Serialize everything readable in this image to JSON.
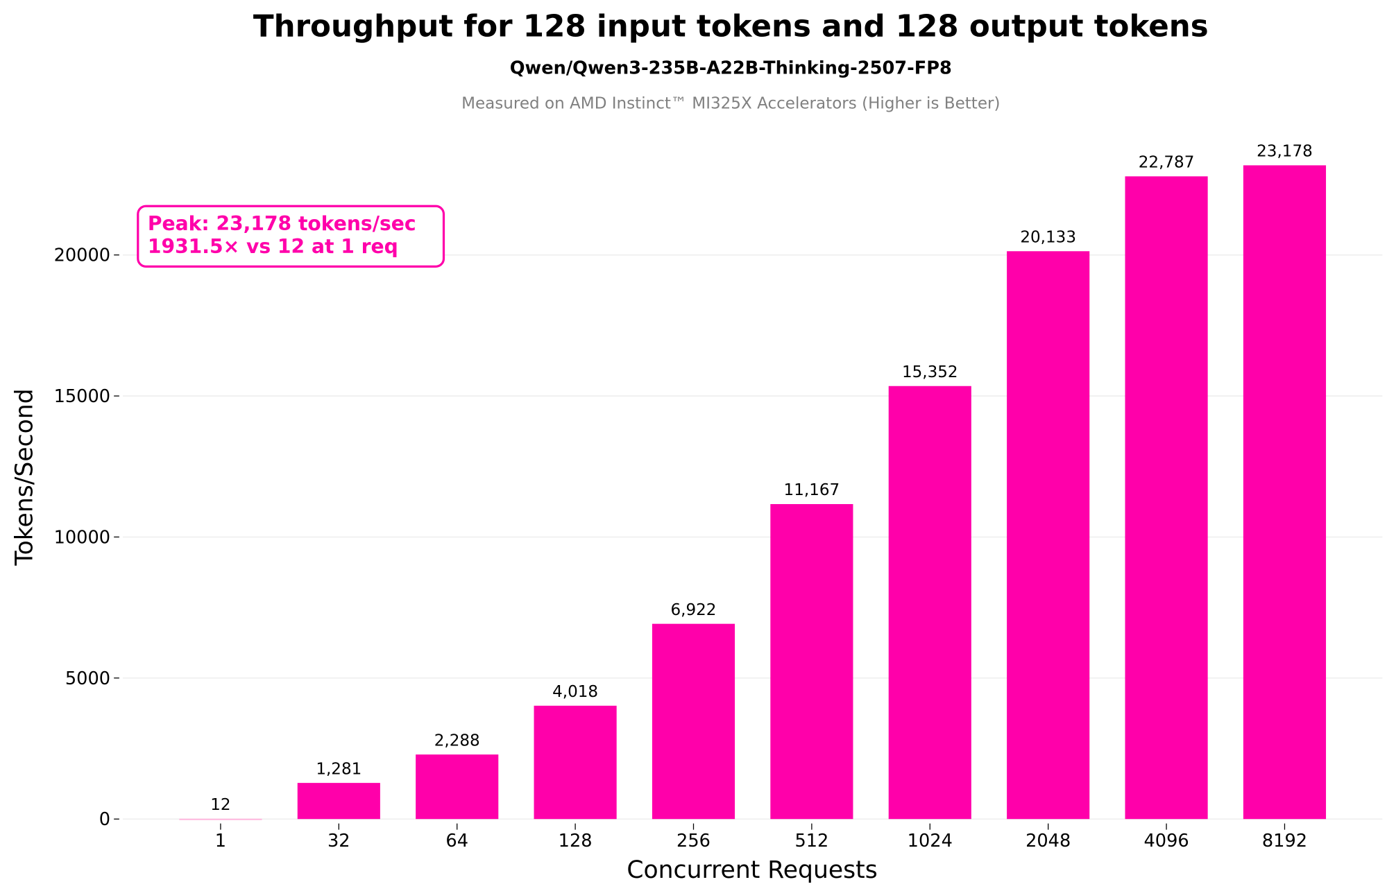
{
  "colors": {
    "bar": "#FF00AA",
    "bar_faded": "#FFB3DD",
    "annotation": "#FF00AA",
    "grid": "#EEEEEE",
    "subtitle_gray": "#808080"
  },
  "chart_data": {
    "type": "bar",
    "title": "Throughput for 128 input tokens and 128 output tokens",
    "subtitle": "Qwen/Qwen3-235B-A22B-Thinking-2507-FP8",
    "caption": "Measured on AMD Instinct™ MI325X Accelerators (Higher is Better)",
    "xlabel": "Concurrent Requests",
    "ylabel": "Tokens/Second",
    "categories": [
      "1",
      "32",
      "64",
      "128",
      "256",
      "512",
      "1024",
      "2048",
      "4096",
      "8192"
    ],
    "values": [
      12,
      1281,
      2288,
      4018,
      6922,
      11167,
      15352,
      20133,
      22787,
      23178
    ],
    "value_labels": [
      "12",
      "1,281",
      "2,288",
      "4,018",
      "6,922",
      "11,167",
      "15,352",
      "20,133",
      "22,787",
      "23,178"
    ],
    "yticks": [
      0,
      5000,
      10000,
      15000,
      20000
    ],
    "ylim": [
      0,
      24500
    ],
    "grid": true,
    "annotation": {
      "line1": "Peak: 23,178 tokens/sec",
      "line2": "1931.5× vs 12 at 1 req",
      "placement": "top-left"
    }
  }
}
